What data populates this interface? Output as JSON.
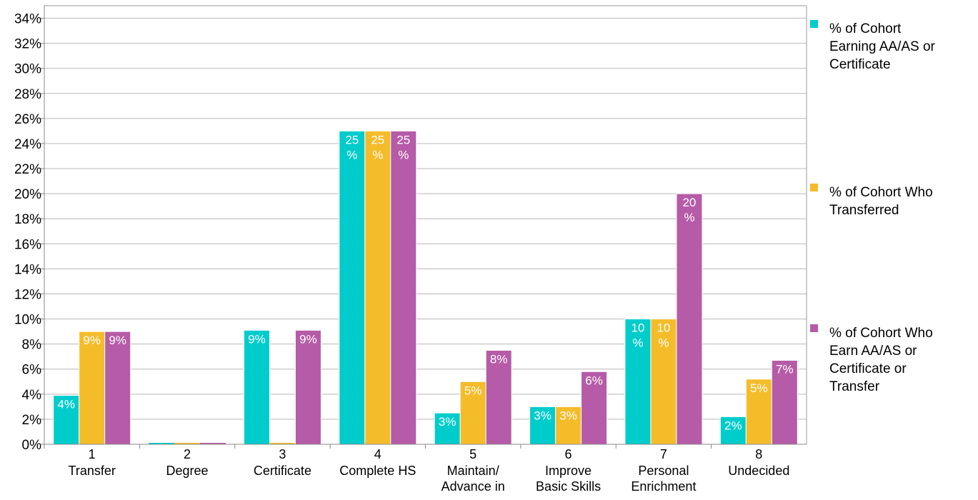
{
  "chart_data": {
    "type": "bar",
    "categories": [
      {
        "number": "1",
        "lines": [
          "Transfer"
        ]
      },
      {
        "number": "2",
        "lines": [
          "Degree"
        ]
      },
      {
        "number": "3",
        "lines": [
          "Certificate"
        ]
      },
      {
        "number": "4",
        "lines": [
          "Complete HS"
        ]
      },
      {
        "number": "5",
        "lines": [
          "Maintain/",
          "Advance in"
        ]
      },
      {
        "number": "6",
        "lines": [
          "Improve",
          "Basic Skills"
        ]
      },
      {
        "number": "7",
        "lines": [
          "Personal",
          "Enrichment"
        ]
      },
      {
        "number": "8",
        "lines": [
          "Undecided"
        ]
      }
    ],
    "series": [
      {
        "name": "% of Cohort Earning AA/AS or Certificate",
        "legend_lines": [
          "% of Cohort",
          "Earning AA/AS or",
          "Certificate"
        ],
        "color": "#00CCCC",
        "values": [
          3.9,
          0,
          9.1,
          25,
          2.5,
          3,
          10,
          2.2
        ],
        "labels": [
          [
            "4%"
          ],
          [],
          [
            "9%"
          ],
          [
            "25",
            "%"
          ],
          [
            "3%"
          ],
          [
            "3%"
          ],
          [
            "10",
            "%"
          ],
          [
            "2%"
          ]
        ]
      },
      {
        "name": "% of Cohort Who Transferred",
        "legend_lines": [
          "% of Cohort Who",
          "Transferred"
        ],
        "color": "#F5BC2A",
        "values": [
          9,
          0,
          0,
          25,
          5,
          3,
          10,
          5.2
        ],
        "labels": [
          [
            "9%"
          ],
          [],
          [],
          [
            "25",
            "%"
          ],
          [
            "5%"
          ],
          [
            "3%"
          ],
          [
            "10",
            "%"
          ],
          [
            "5%"
          ]
        ]
      },
      {
        "name": "% of Cohort Who Earn AA/AS or Certificate or Transfer",
        "legend_lines": [
          "% of Cohort Who",
          "Earn AA/AS or",
          "Certificate or",
          "Transfer"
        ],
        "color": "#B65BA7",
        "values": [
          9,
          0,
          9.1,
          25,
          7.5,
          5.8,
          20,
          6.7
        ],
        "labels": [
          [
            "9%"
          ],
          [],
          [
            "9%"
          ],
          [
            "25",
            "%"
          ],
          [
            "8%"
          ],
          [
            "6%"
          ],
          [
            "20",
            "%"
          ],
          [
            "7%"
          ]
        ]
      }
    ],
    "y_ticks": [
      "0%",
      "2%",
      "4%",
      "6%",
      "8%",
      "10%",
      "12%",
      "14%",
      "16%",
      "18%",
      "20%",
      "22%",
      "24%",
      "26%",
      "28%",
      "30%",
      "32%",
      "34%"
    ],
    "ylim": [
      0,
      35
    ],
    "grid": true,
    "legend_position": "right",
    "title": "",
    "xlabel": "",
    "ylabel": ""
  }
}
